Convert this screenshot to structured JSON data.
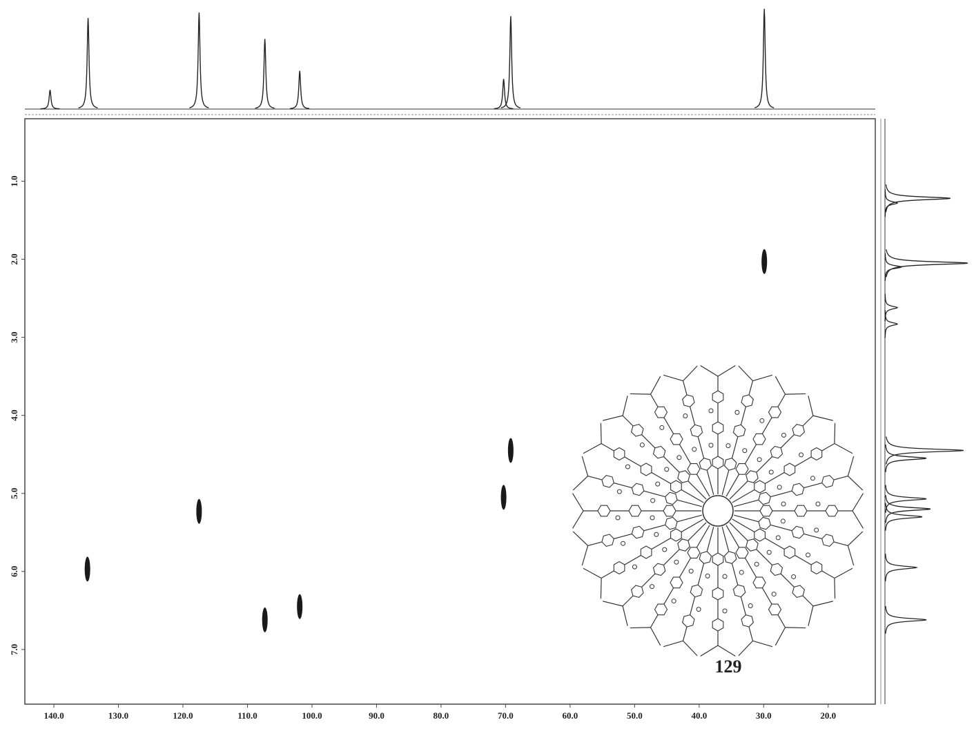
{
  "chart_data": {
    "type": "scatter",
    "annotation": "129",
    "color": "#1a1a1a",
    "xlim": [
      144.5,
      12.7
    ],
    "ylim": [
      0.2,
      7.7
    ],
    "xticks": [
      {
        "value": 140,
        "label": "140.0"
      },
      {
        "value": 130,
        "label": "130.0"
      },
      {
        "value": 120,
        "label": "120.0"
      },
      {
        "value": 110,
        "label": "110.0"
      },
      {
        "value": 100,
        "label": "100.0"
      },
      {
        "value": 90,
        "label": "90.0"
      },
      {
        "value": 80,
        "label": "80.0"
      },
      {
        "value": 70,
        "label": "70.0"
      },
      {
        "value": 60,
        "label": "60.0"
      },
      {
        "value": 50,
        "label": "50.0"
      },
      {
        "value": 40,
        "label": "40.0"
      },
      {
        "value": 30,
        "label": "30.0"
      },
      {
        "value": 20,
        "label": "20.0"
      }
    ],
    "yticks": [
      {
        "value": 1,
        "label": "1.0"
      },
      {
        "value": 2,
        "label": "2.0"
      },
      {
        "value": 3,
        "label": "3.0"
      },
      {
        "value": 4,
        "label": "4.0"
      },
      {
        "value": 5,
        "label": "5.0"
      },
      {
        "value": 6,
        "label": "6.0"
      },
      {
        "value": 7,
        "label": "7.0"
      }
    ],
    "x": [
      134.8,
      117.5,
      107.3,
      101.9,
      69.2,
      70.3,
      29.9
    ],
    "y": [
      5.97,
      5.23,
      6.62,
      6.45,
      4.45,
      5.05,
      2.03
    ],
    "top_spectrum": {
      "x": [
        140.6,
        134.7,
        117.5,
        107.3,
        101.9,
        70.3,
        69.2,
        29.9
      ],
      "values": [
        0.21,
        1.0,
        1.06,
        0.77,
        0.42,
        0.33,
        1.02,
        1.1
      ]
    },
    "side_spectrum": {
      "y": [
        1.22,
        1.28,
        2.05,
        2.1,
        2.62,
        2.83,
        4.45,
        4.55,
        5.07,
        5.2,
        5.3,
        5.95,
        6.62
      ],
      "values": [
        0.79,
        0.15,
        1.0,
        0.2,
        0.15,
        0.15,
        0.95,
        0.5,
        0.5,
        0.55,
        0.45,
        0.38,
        0.5
      ]
    }
  }
}
